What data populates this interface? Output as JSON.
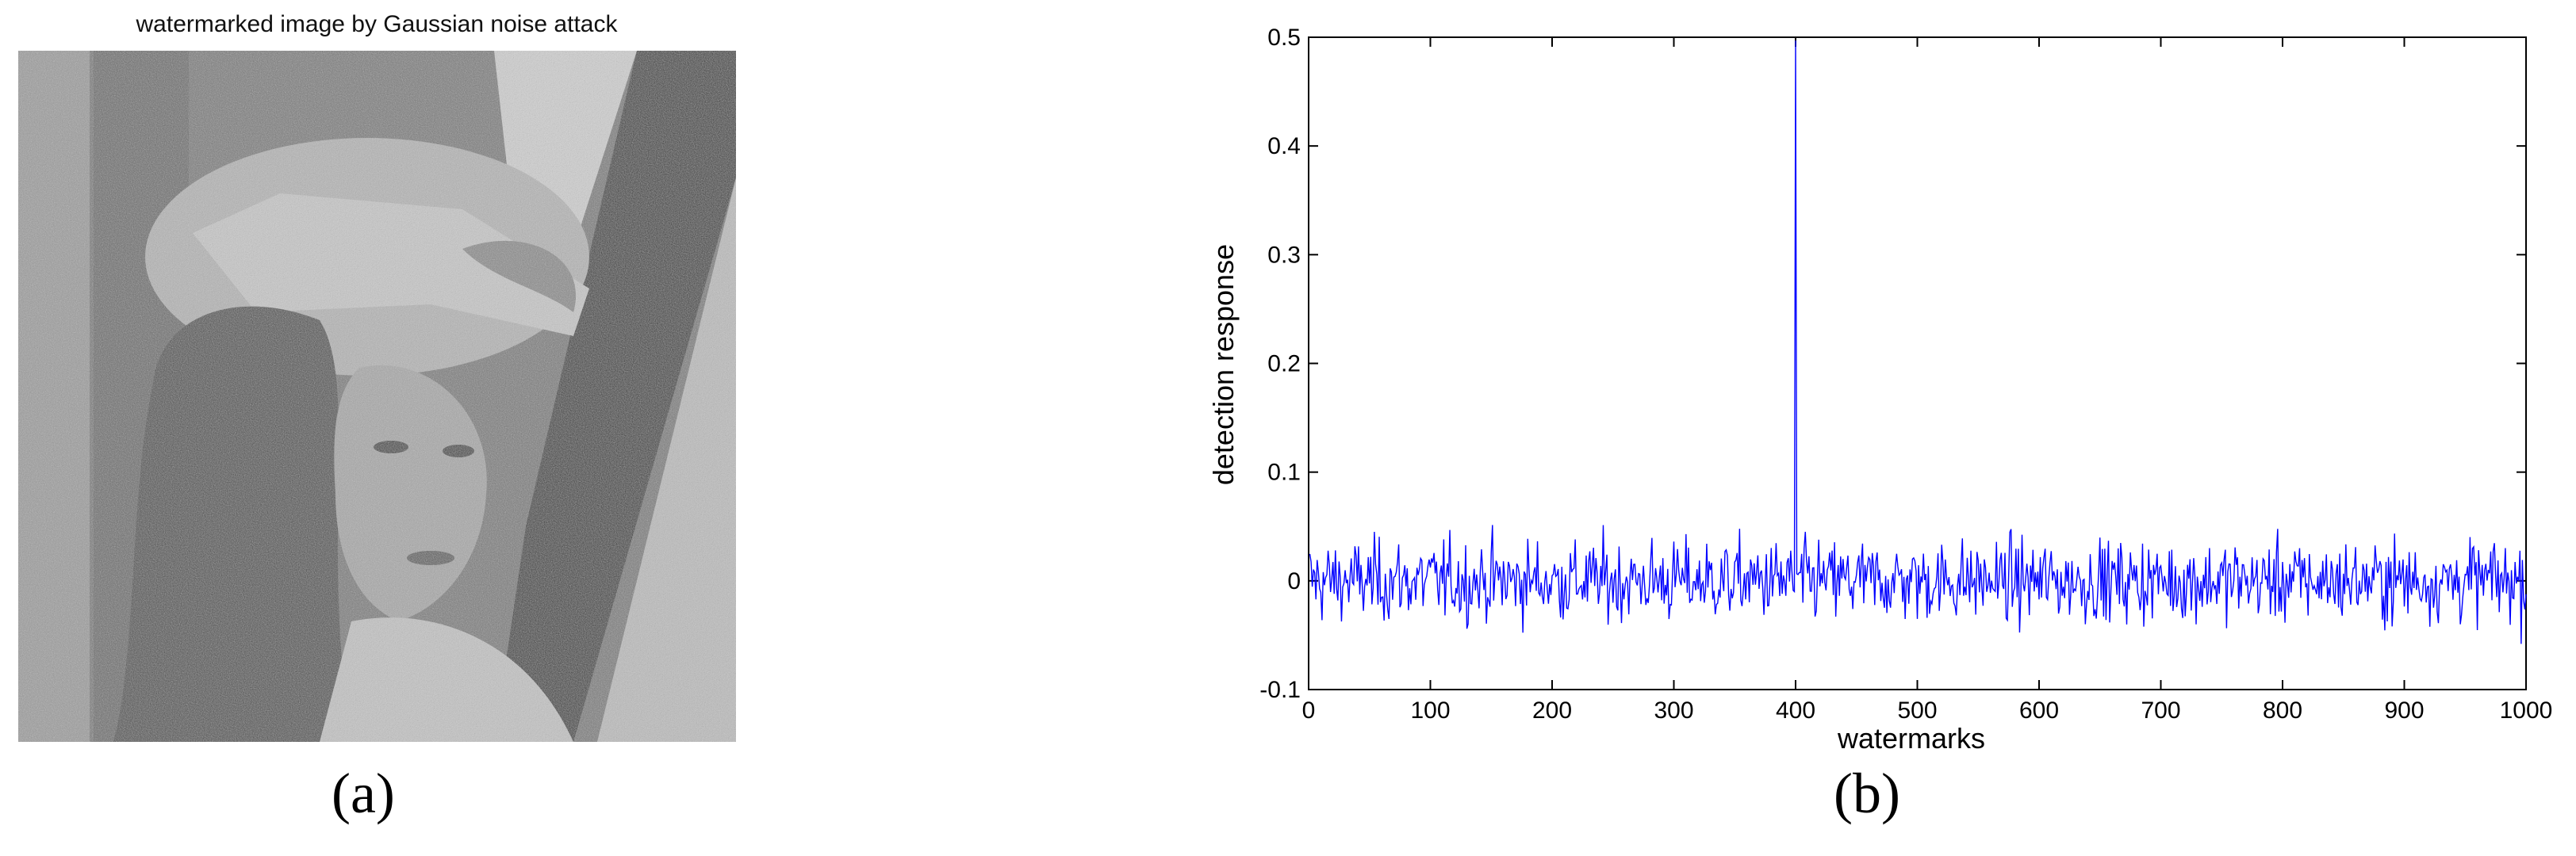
{
  "panel_a": {
    "title": "watermarked image by Gaussian noise attack",
    "image": "Lena portrait with Gaussian noise (grayscale)",
    "label": "(a)"
  },
  "panel_b": {
    "label": "(b)"
  },
  "colors": {
    "series": "#0000ff",
    "axes": "#000000"
  },
  "chart_data": {
    "type": "line",
    "title": "",
    "xlabel": "watermarks",
    "ylabel": "detection response",
    "xlim": [
      0,
      1000
    ],
    "ylim": [
      -0.1,
      0.5
    ],
    "xticks": [
      0,
      100,
      200,
      300,
      400,
      500,
      600,
      700,
      800,
      900,
      1000
    ],
    "yticks": [
      -0.1,
      0,
      0.1,
      0.2,
      0.3,
      0.4,
      0.5
    ],
    "ytick_labels": [
      "-0.1",
      "0",
      "0.1",
      "0.2",
      "0.3",
      "0.4",
      "0.5"
    ],
    "grid": false,
    "series": [
      {
        "noise_amplitude": 0.03,
        "n_points": 1000,
        "peak": {
          "x": 400,
          "y": 0.497
        }
      }
    ]
  }
}
